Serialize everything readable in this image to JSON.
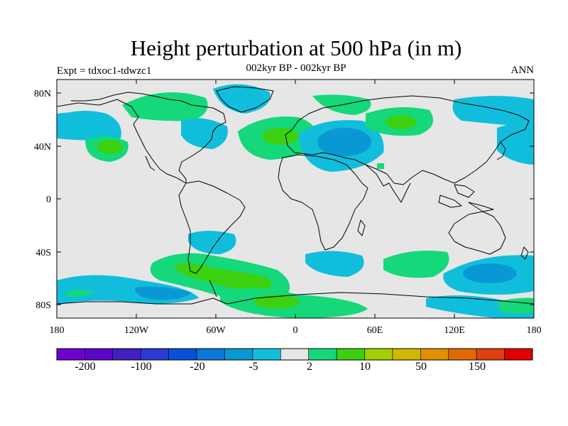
{
  "title": "Height perturbation at 500 hPa (in m)",
  "left_label": "Expt = tdxoc1-tdwzc1",
  "center_label": "002kyr BP - 002kyr BP",
  "right_label": "ANN",
  "axes": {
    "y_ticks": [
      "80N",
      "40N",
      "0",
      "40S",
      "80S"
    ],
    "x_ticks": [
      "180",
      "120W",
      "60W",
      "0",
      "60E",
      "120E",
      "180"
    ]
  },
  "colors": {
    "background_fill": "#e6e6e6",
    "coast": "#000000"
  },
  "colorbar": {
    "colors": [
      "#7000d0",
      "#5a06c8",
      "#4020c0",
      "#2a3ad2",
      "#0850d8",
      "#0a78d8",
      "#0a98d4",
      "#10bedc",
      "#e6e6e6",
      "#14d87a",
      "#3cd010",
      "#a0d000",
      "#d0b800",
      "#e09000",
      "#e06a00",
      "#e04010",
      "#e00000"
    ],
    "labels": [
      "-200",
      "-100",
      "-20",
      "-5",
      "2",
      "10",
      "50",
      "150"
    ]
  }
}
